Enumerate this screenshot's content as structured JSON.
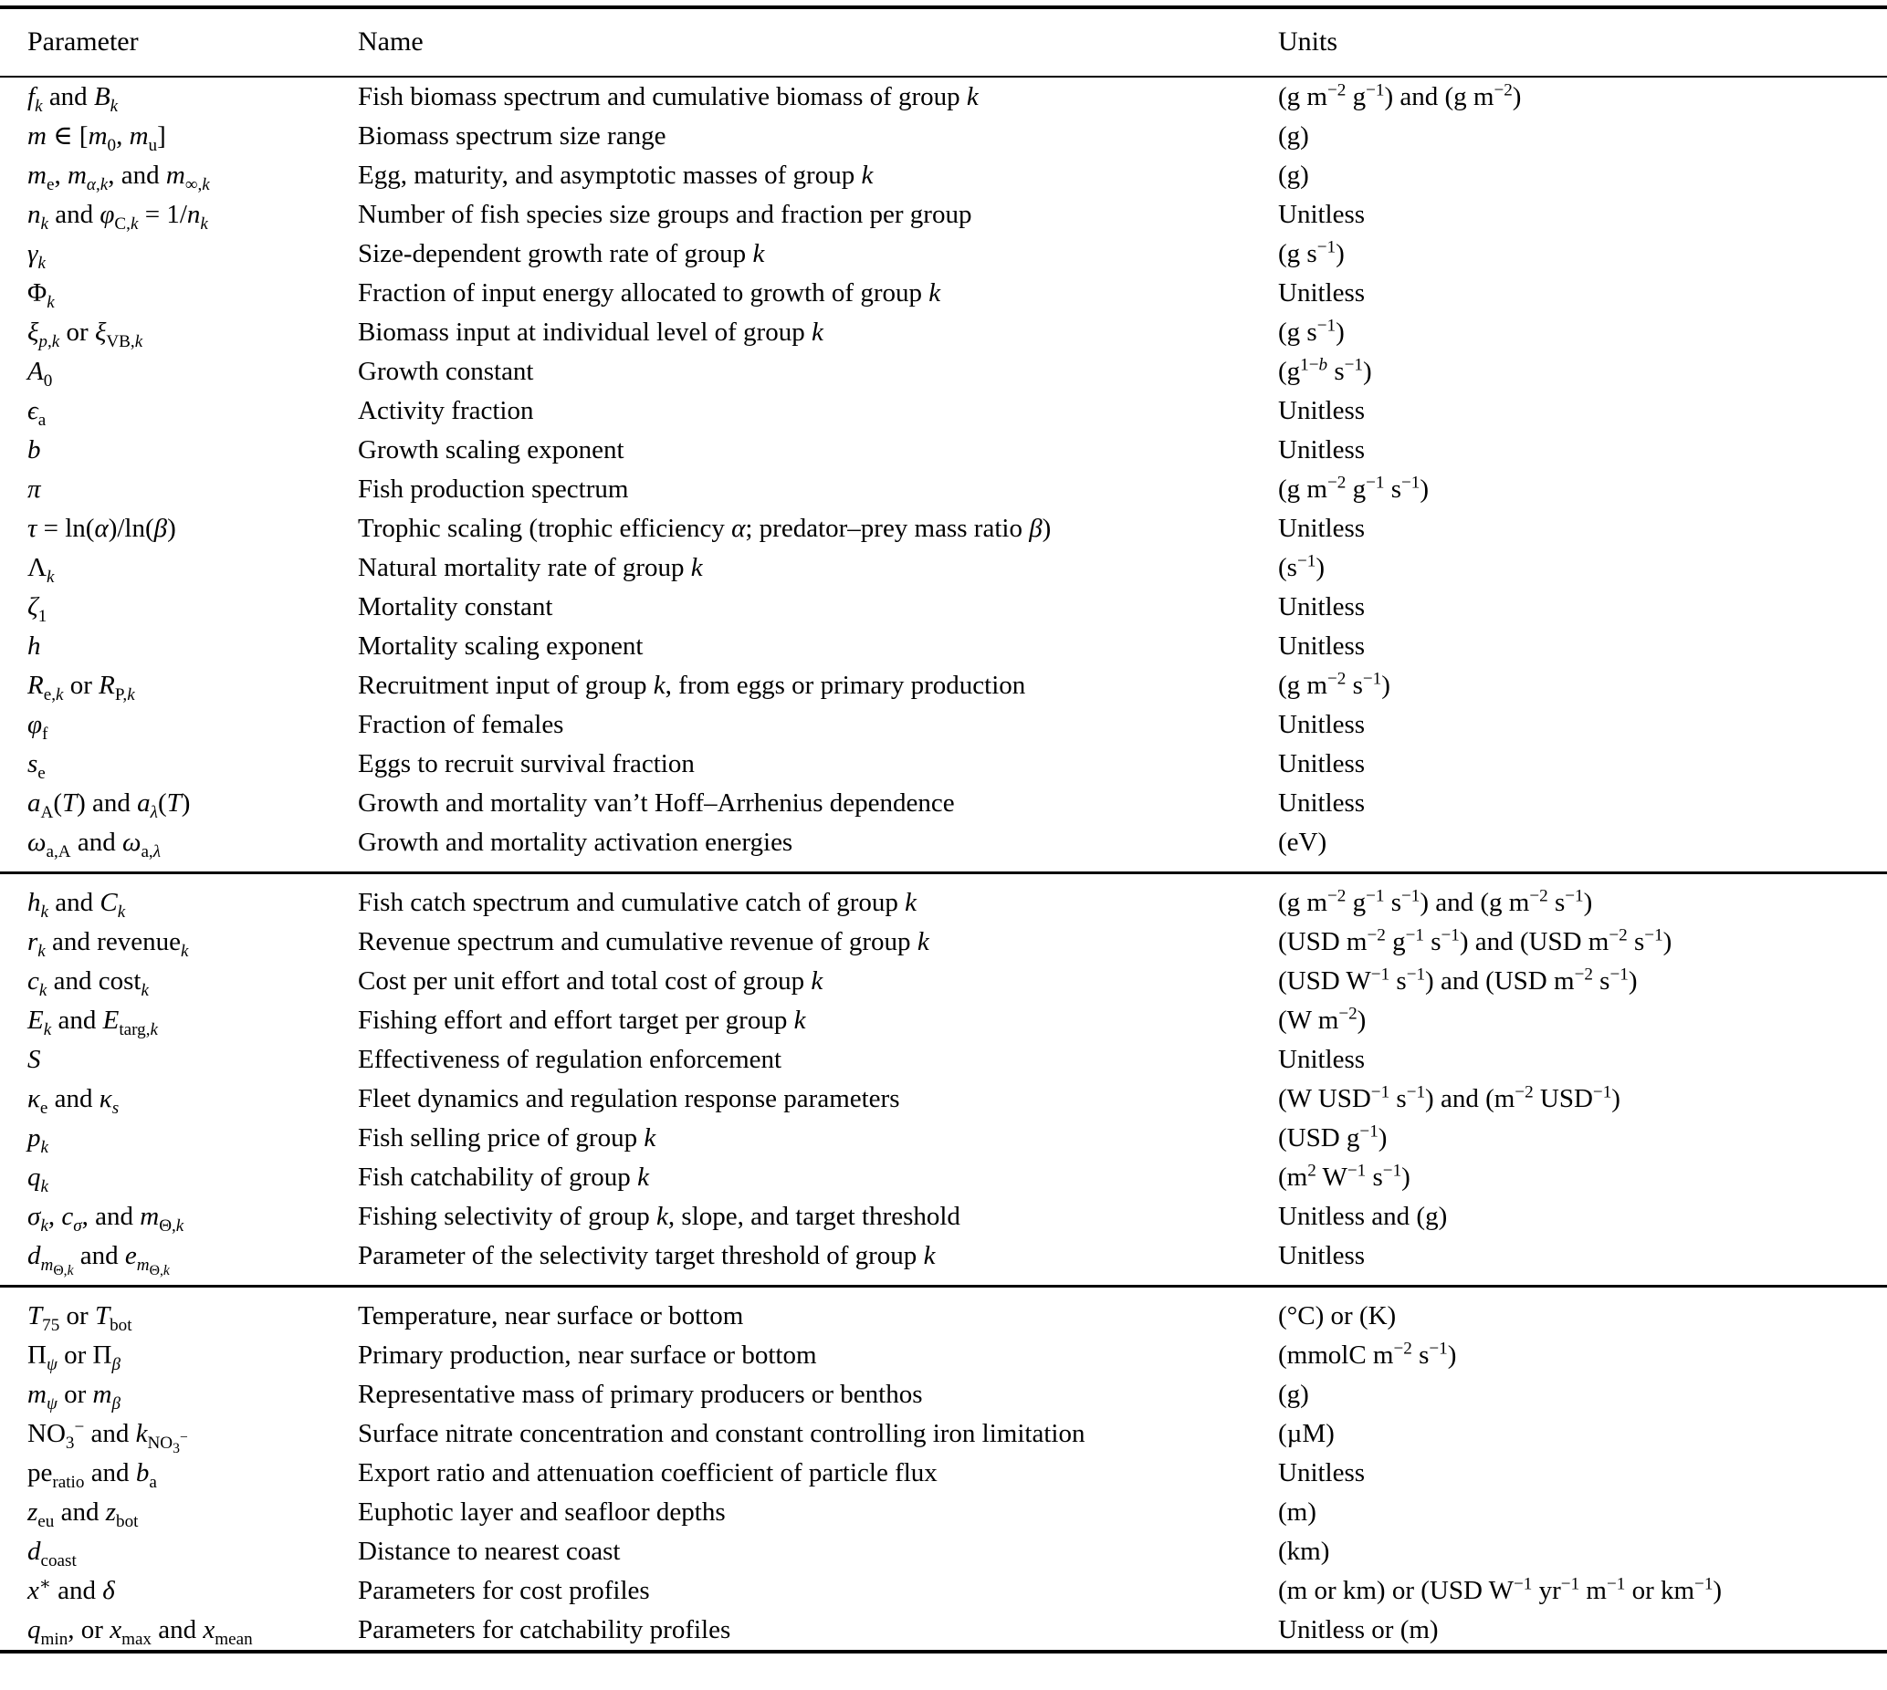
{
  "page": {
    "background": "#ffffff",
    "text_color": "#000000",
    "rule_color": "#000000"
  },
  "table": {
    "headers": [
      "Parameter",
      "Name",
      "Units"
    ],
    "sections": [
      {
        "rows": [
          {
            "param": "<i>f<sub>k</sub></i> and <i>B<sub>k</sub></i>",
            "name": "Fish biomass spectrum and cumulative biomass of group <i>k</i>",
            "units": "(g m<sup>−2</sup> g<sup>−1</sup>) and (g m<sup>−2</sup>)"
          },
          {
            "param": "<i>m</i> ∈ [<i>m</i><sub>0</sub>, <i>m</i><sub>u</sub>]",
            "name": "Biomass spectrum size range",
            "units": "(g)"
          },
          {
            "param": "<i>m</i><sub>e</sub>, <i>m</i><sub><i>α</i>,<i>k</i></sub>, and <i>m</i><sub>∞,<i>k</i></sub>",
            "name": "Egg, maturity, and asymptotic masses of group <i>k</i>",
            "units": "(g)"
          },
          {
            "param": "<i>n<sub>k</sub></i> and <i>φ</i><sub>C,<i>k</i></sub> = 1/<i>n<sub>k</sub></i>",
            "name": "Number of fish species size groups and fraction per group",
            "units": "Unitless"
          },
          {
            "param": "<i>γ<sub>k</sub></i>",
            "name": "Size-dependent growth rate of group <i>k</i>",
            "units": "(g s<sup>−1</sup>)"
          },
          {
            "param": "Φ<sub><i>k</i></sub>",
            "name": "Fraction of input energy allocated to growth of group <i>k</i>",
            "units": "Unitless"
          },
          {
            "param": "<i>ξ</i><sub><i>p</i>,<i>k</i></sub> or <i>ξ</i><sub>VB,<i>k</i></sub>",
            "name": "Biomass input at individual level of group <i>k</i>",
            "units": "(g s<sup>−1</sup>)"
          },
          {
            "param": "<i>A</i><sub>0</sub>",
            "name": "Growth constant",
            "units": "(g<sup>1−<i>b</i></sup> s<sup>−1</sup>)"
          },
          {
            "param": "<i>ϵ</i><sub>a</sub>",
            "name": "Activity fraction",
            "units": "Unitless"
          },
          {
            "param": "<i>b</i>",
            "name": "Growth scaling exponent",
            "units": "Unitless"
          },
          {
            "param": "<i>π</i>",
            "name": "Fish production spectrum",
            "units": "(g m<sup>−2</sup> g<sup>−1</sup> s<sup>−1</sup>)"
          },
          {
            "param": "<i>τ</i> = ln(<i>α</i>)/ln(<i>β</i>)",
            "name": "Trophic scaling (trophic efficiency <i>α</i>; predator–prey mass ratio <i>β</i>)",
            "units": "Unitless"
          },
          {
            "param": "Λ<sub><i>k</i></sub>",
            "name": "Natural mortality rate of group <i>k</i>",
            "units": "(s<sup>−1</sup>)"
          },
          {
            "param": "<i>ζ</i><sub>1</sub>",
            "name": "Mortality constant",
            "units": "Unitless"
          },
          {
            "param": "<i>h</i>",
            "name": "Mortality scaling exponent",
            "units": "Unitless"
          },
          {
            "param": "<i>R</i><sub>e,<i>k</i></sub> or <i>R</i><sub>P,<i>k</i></sub>",
            "name": "Recruitment input of group <i>k</i>, from eggs or primary production",
            "units": "(g m<sup>−2</sup> s<sup>−1</sup>)"
          },
          {
            "param": "<i>φ</i><sub>f</sub>",
            "name": "Fraction of females",
            "units": "Unitless"
          },
          {
            "param": "<i>s</i><sub>e</sub>",
            "name": "Eggs to recruit survival fraction",
            "units": "Unitless"
          },
          {
            "param": "<i>a</i><sub>A</sub>(<i>T</i>) and <i>a</i><sub><i>λ</i></sub>(<i>T</i>)",
            "name": "Growth and mortality van’t Hoff–Arrhenius dependence",
            "units": "Unitless"
          },
          {
            "param": "<i>ω</i><sub>a,A</sub> and <i>ω</i><sub>a,<i>λ</i></sub>",
            "name": "Growth and mortality activation energies",
            "units": "(eV)"
          }
        ]
      },
      {
        "rows": [
          {
            "param": "<i>h<sub>k</sub></i> and <i>C<sub>k</sub></i>",
            "name": "Fish catch spectrum and cumulative catch of group <i>k</i>",
            "units": "(g m<sup>−2</sup> g<sup>−1</sup> s<sup>−1</sup>) and (g m<sup>−2</sup> s<sup>−1</sup>)"
          },
          {
            "param": "<i>r<sub>k</sub></i> and revenue<sub><i>k</i></sub>",
            "name": "Revenue spectrum and cumulative revenue of group <i>k</i>",
            "units": "(USD m<sup>−2</sup> g<sup>−1</sup> s<sup>−1</sup>) and (USD m<sup>−2</sup> s<sup>−1</sup>)"
          },
          {
            "param": "<i>c<sub>k</sub></i> and cost<sub><i>k</i></sub>",
            "name": "Cost per unit effort and total cost of group <i>k</i>",
            "units": "(USD W<sup>−1</sup> s<sup>−1</sup>) and (USD m<sup>−2</sup> s<sup>−1</sup>)"
          },
          {
            "param": "<i>E<sub>k</sub></i> and <i>E</i><sub>targ,<i>k</i></sub>",
            "name": "Fishing effort and effort target per group <i>k</i>",
            "units": "(W m<sup>−2</sup>)"
          },
          {
            "param": "<i>S</i>",
            "name": "Effectiveness of regulation enforcement",
            "units": "Unitless"
          },
          {
            "param": "<i>κ</i><sub>e</sub> and <i>κ<sub>s</sub></i>",
            "name": "Fleet dynamics and regulation response parameters",
            "units": "(W USD<sup>−1</sup> s<sup>−1</sup>) and (m<sup>−2</sup> USD<sup>−1</sup>)"
          },
          {
            "param": "<i>p<sub>k</sub></i>",
            "name": "Fish selling price of group <i>k</i>",
            "units": "(USD g<sup>−1</sup>)"
          },
          {
            "param": "<i>q<sub>k</sub></i>",
            "name": "Fish catchability of group <i>k</i>",
            "units": "(m<sup>2</sup> W<sup>−1</sup> s<sup>−1</sup>)"
          },
          {
            "param": "<i>σ<sub>k</sub></i>, <i>c<sub>σ</sub></i>, and <i>m</i><sub>Θ,<i>k</i></sub>",
            "name": "Fishing selectivity of group <i>k</i>, slope, and target threshold",
            "units": "Unitless and (g)"
          },
          {
            "param": "<i>d</i><sub><i>m</i><sub>Θ,<i>k</i></sub></sub> and <i>e</i><sub><i>m</i><sub>Θ,<i>k</i></sub></sub>",
            "name": "Parameter of the selectivity target threshold of group <i>k</i>",
            "units": "Unitless"
          }
        ]
      },
      {
        "rows": [
          {
            "param": "<i>T</i><sub>75</sub> or <i>T</i><sub>bot</sub>",
            "name": "Temperature, near surface or bottom",
            "units": "(°C) or (K)"
          },
          {
            "param": "Π<sub><i>ψ</i></sub> or Π<sub><i>β</i></sub>",
            "name": "Primary production, near surface or bottom",
            "units": "(mmolC m<sup>−2</sup> s<sup>−1</sup>)"
          },
          {
            "param": "<i>m<sub>ψ</sub></i> or <i>m<sub>β</sub></i>",
            "name": "Representative mass of primary producers or benthos",
            "units": "(g)"
          },
          {
            "param": "NO<sub>3</sub><sup>−</sup> and <i>k</i><sub>NO<sub>3</sub><sup>−</sup></sub>",
            "name": "Surface nitrate concentration and constant controlling iron limitation",
            "units": "(µM)"
          },
          {
            "param": "pe<sub>ratio</sub> and <i>b</i><sub>a</sub>",
            "name": "Export ratio and attenuation coefficient of particle flux",
            "units": "Unitless"
          },
          {
            "param": "<i>z</i><sub>eu</sub> and <i>z</i><sub>bot</sub>",
            "name": "Euphotic layer and seafloor depths",
            "units": "(m)"
          },
          {
            "param": "<i>d</i><sub>coast</sub>",
            "name": "Distance to nearest coast",
            "units": "(km)"
          },
          {
            "param": "<i>x</i><sup>∗</sup> and <i>δ</i>",
            "name": "Parameters for cost profiles",
            "units": "(m or km) or (USD W<sup>−1</sup> yr<sup>−1</sup> m<sup>−1</sup> or km<sup>−1</sup>)"
          },
          {
            "param": "<i>q</i><sub>min</sub>, or <i>x</i><sub>max</sub> and <i>x</i><sub>mean</sub>",
            "name": "Parameters for catchability profiles",
            "units": "Unitless or (m)"
          }
        ]
      }
    ]
  }
}
